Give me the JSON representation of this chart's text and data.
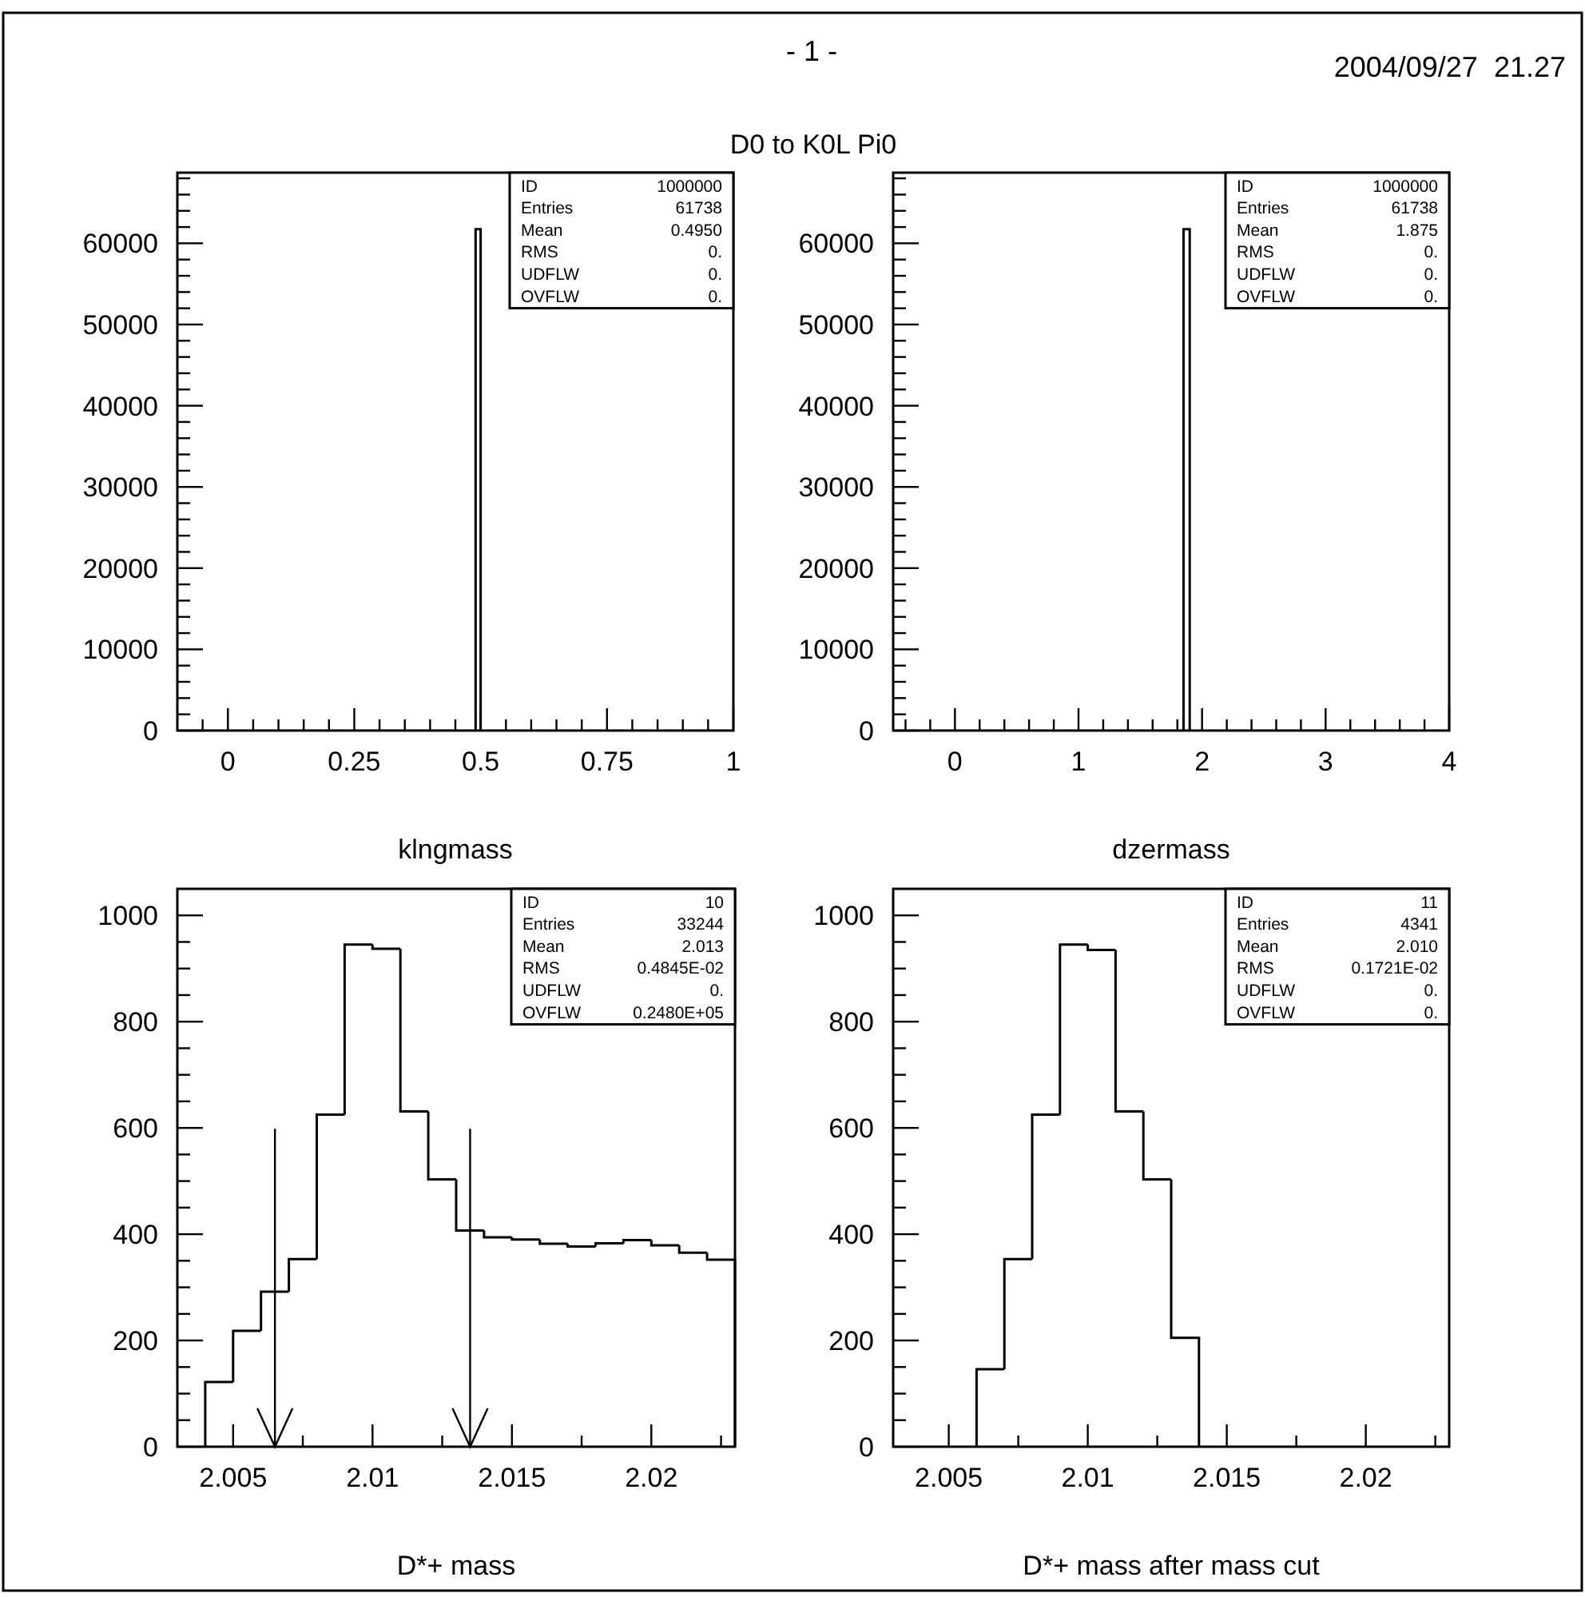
{
  "chart_data": [
    {
      "type": "histogram",
      "title": "D0 to K0L Pi0",
      "xlabel": "klngmass",
      "annotations": [
        "- 1 -",
        "2004/09/27  21.27",
        "ID",
        "1000000",
        "Entries",
        "61738",
        "Mean",
        "0.4950",
        "RMS",
        "0.",
        "UDFLW",
        "0.",
        "OVFLW",
        "0."
      ],
      "bins": [
        0.49,
        0.5
      ],
      "values": [
        61738
      ],
      "color": "#000000",
      "xlim": [
        -0.1,
        1
      ],
      "ylim": [
        0,
        68700
      ],
      "xticks": [
        {
          "value": -0.05,
          "label": null
        },
        0,
        {
          "value": 0.05,
          "label": null
        },
        {
          "value": 0.1,
          "label": null
        },
        {
          "value": 0.15,
          "label": null
        },
        {
          "value": 0.2,
          "label": null
        },
        0.25,
        {
          "value": 0.3,
          "label": null
        },
        {
          "value": 0.35,
          "label": null
        },
        {
          "value": 0.4,
          "label": null
        },
        {
          "value": 0.45,
          "label": null
        },
        0.5,
        {
          "value": 0.55,
          "label": null
        },
        {
          "value": 0.6,
          "label": null
        },
        {
          "value": 0.65,
          "label": null
        },
        {
          "value": 0.7,
          "label": null
        },
        0.75,
        {
          "value": 0.8,
          "label": null
        },
        {
          "value": 0.85,
          "label": null
        },
        {
          "value": 0.9,
          "label": null
        },
        {
          "value": 0.95,
          "label": null
        },
        1
      ],
      "yticks": [
        0,
        {
          "value": 2000,
          "label": null
        },
        {
          "value": 4000,
          "label": null
        },
        {
          "value": 6000,
          "label": null
        },
        {
          "value": 8000,
          "label": null
        },
        10000,
        {
          "value": 12000,
          "label": null
        },
        {
          "value": 14000,
          "label": null
        },
        {
          "value": 16000,
          "label": null
        },
        {
          "value": 18000,
          "label": null
        },
        20000,
        {
          "value": 22000,
          "label": null
        },
        {
          "value": 24000,
          "label": null
        },
        {
          "value": 26000,
          "label": null
        },
        {
          "value": 28000,
          "label": null
        },
        30000,
        {
          "value": 32000,
          "label": null
        },
        {
          "value": 34000,
          "label": null
        },
        {
          "value": 36000,
          "label": null
        },
        {
          "value": 38000,
          "label": null
        },
        40000,
        {
          "value": 42000,
          "label": null
        },
        {
          "value": 44000,
          "label": null
        },
        {
          "value": 46000,
          "label": null
        },
        {
          "value": 48000,
          "label": null
        },
        50000,
        {
          "value": 52000,
          "label": null
        },
        {
          "value": 54000,
          "label": null
        },
        {
          "value": 56000,
          "label": null
        },
        {
          "value": 58000,
          "label": null
        },
        60000,
        {
          "value": 62000,
          "label": null
        },
        {
          "value": 64000,
          "label": null
        },
        {
          "value": 66000,
          "label": null
        },
        {
          "value": 68000,
          "label": null
        }
      ]
    },
    {
      "type": "histogram",
      "xlabel": "dzermass",
      "annotations": [
        "ID",
        "1000000",
        "Entries",
        "61738",
        "Mean",
        "1.875",
        "RMS",
        "0.",
        "UDFLW",
        "0.",
        "OVFLW",
        "0."
      ],
      "bins": [
        1.85,
        1.9
      ],
      "values": [
        61738
      ],
      "color": "#000000",
      "xlim": [
        -0.5,
        4
      ],
      "ylim": [
        0,
        68700
      ],
      "xticks": [
        {
          "value": -0.4,
          "label": null
        },
        {
          "value": -0.2,
          "label": null
        },
        0,
        {
          "value": 0.2,
          "label": null
        },
        {
          "value": 0.4,
          "label": null
        },
        {
          "value": 0.6,
          "label": null
        },
        {
          "value": 0.8,
          "label": null
        },
        1,
        {
          "value": 1.2,
          "label": null
        },
        {
          "value": 1.4,
          "label": null
        },
        {
          "value": 1.6,
          "label": null
        },
        {
          "value": 1.8,
          "label": null
        },
        2,
        {
          "value": 2.2,
          "label": null
        },
        {
          "value": 2.4,
          "label": null
        },
        {
          "value": 2.6,
          "label": null
        },
        {
          "value": 2.8,
          "label": null
        },
        3,
        {
          "value": 3.2,
          "label": null
        },
        {
          "value": 3.4,
          "label": null
        },
        {
          "value": 3.6,
          "label": null
        },
        {
          "value": 3.8,
          "label": null
        },
        4
      ],
      "yticks": [
        0,
        {
          "value": 2000,
          "label": null
        },
        {
          "value": 4000,
          "label": null
        },
        {
          "value": 6000,
          "label": null
        },
        {
          "value": 8000,
          "label": null
        },
        10000,
        {
          "value": 12000,
          "label": null
        },
        {
          "value": 14000,
          "label": null
        },
        {
          "value": 16000,
          "label": null
        },
        {
          "value": 18000,
          "label": null
        },
        20000,
        {
          "value": 22000,
          "label": null
        },
        {
          "value": 24000,
          "label": null
        },
        {
          "value": 26000,
          "label": null
        },
        {
          "value": 28000,
          "label": null
        },
        30000,
        {
          "value": 32000,
          "label": null
        },
        {
          "value": 34000,
          "label": null
        },
        {
          "value": 36000,
          "label": null
        },
        {
          "value": 38000,
          "label": null
        },
        40000,
        {
          "value": 42000,
          "label": null
        },
        {
          "value": 44000,
          "label": null
        },
        {
          "value": 46000,
          "label": null
        },
        {
          "value": 48000,
          "label": null
        },
        50000,
        {
          "value": 52000,
          "label": null
        },
        {
          "value": 54000,
          "label": null
        },
        {
          "value": 56000,
          "label": null
        },
        {
          "value": 58000,
          "label": null
        },
        60000,
        {
          "value": 62000,
          "label": null
        },
        {
          "value": 64000,
          "label": null
        },
        {
          "value": 66000,
          "label": null
        },
        {
          "value": 68000,
          "label": null
        }
      ]
    },
    {
      "type": "histogram",
      "xlabel": "D*+ mass",
      "annotations": [
        "ID",
        "10",
        "Entries",
        "33244",
        "Mean",
        "2.013",
        "RMS",
        "0.4845E-02",
        "UDFLW",
        "0.",
        "OVFLW",
        "0.2480E+05"
      ],
      "bins": [
        2.004,
        2.005,
        2.006,
        2.007,
        2.008,
        2.009,
        2.01,
        2.011,
        2.012,
        2.013,
        2.014,
        2.015,
        2.016,
        2.017,
        2.018,
        2.019,
        2.02,
        2.021,
        2.022,
        2.023
      ],
      "values": [
        122,
        218,
        292,
        353,
        625,
        945,
        937,
        631,
        503,
        407,
        394,
        390,
        382,
        377,
        383,
        389,
        379,
        365,
        352
      ],
      "color": "#000000",
      "xlim": [
        2.003,
        2.023
      ],
      "ylim": [
        0,
        1050
      ],
      "xticks": [
        2.005,
        {
          "value": 2.0075,
          "label": null
        },
        2.01,
        {
          "value": 2.0125,
          "label": null
        },
        2.015,
        {
          "value": 2.0175,
          "label": null
        },
        2.02,
        {
          "value": 2.0225,
          "label": null
        }
      ],
      "yticks": [
        0,
        {
          "value": 50,
          "label": null
        },
        {
          "value": 100,
          "label": null
        },
        {
          "value": 150,
          "label": null
        },
        200,
        {
          "value": 250,
          "label": null
        },
        {
          "value": 300,
          "label": null
        },
        {
          "value": 350,
          "label": null
        },
        400,
        {
          "value": 450,
          "label": null
        },
        {
          "value": 500,
          "label": null
        },
        {
          "value": 550,
          "label": null
        },
        600,
        {
          "value": 650,
          "label": null
        },
        {
          "value": 700,
          "label": null
        },
        {
          "value": 750,
          "label": null
        },
        800,
        {
          "value": 850,
          "label": null
        },
        {
          "value": 900,
          "label": null
        },
        {
          "value": 950,
          "label": null
        },
        1000
      ],
      "ref_lines": [
        {
          "axis": "x",
          "value": 2.0065
        },
        {
          "axis": "x",
          "value": 2.0135
        }
      ]
    },
    {
      "type": "histogram",
      "xlabel": "D*+ mass after mass cut",
      "annotations": [
        "ID",
        "11",
        "Entries",
        "4341",
        "Mean",
        "2.010",
        "RMS",
        "0.1721E-02",
        "UDFLW",
        "0.",
        "OVFLW",
        "0."
      ],
      "bins": [
        2.006,
        2.007,
        2.008,
        2.009,
        2.01,
        2.011,
        2.012,
        2.013,
        2.014
      ],
      "values": [
        146,
        353,
        625,
        945,
        935,
        631,
        503,
        205
      ],
      "color": "#000000",
      "xlim": [
        2.003,
        2.023
      ],
      "ylim": [
        0,
        1050
      ],
      "xticks": [
        2.005,
        {
          "value": 2.0075,
          "label": null
        },
        2.01,
        {
          "value": 2.0125,
          "label": null
        },
        2.015,
        {
          "value": 2.0175,
          "label": null
        },
        2.02,
        {
          "value": 2.0225,
          "label": null
        }
      ],
      "yticks": [
        0,
        {
          "value": 50,
          "label": null
        },
        {
          "value": 100,
          "label": null
        },
        {
          "value": 150,
          "label": null
        },
        200,
        {
          "value": 250,
          "label": null
        },
        {
          "value": 300,
          "label": null
        },
        {
          "value": 350,
          "label": null
        },
        400,
        {
          "value": 450,
          "label": null
        },
        {
          "value": 500,
          "label": null
        },
        {
          "value": 550,
          "label": null
        },
        600,
        {
          "value": 650,
          "label": null
        },
        {
          "value": 700,
          "label": null
        },
        {
          "value": 750,
          "label": null
        },
        800,
        {
          "value": 850,
          "label": null
        },
        {
          "value": 900,
          "label": null
        },
        {
          "value": 950,
          "label": null
        },
        1000
      ]
    }
  ]
}
